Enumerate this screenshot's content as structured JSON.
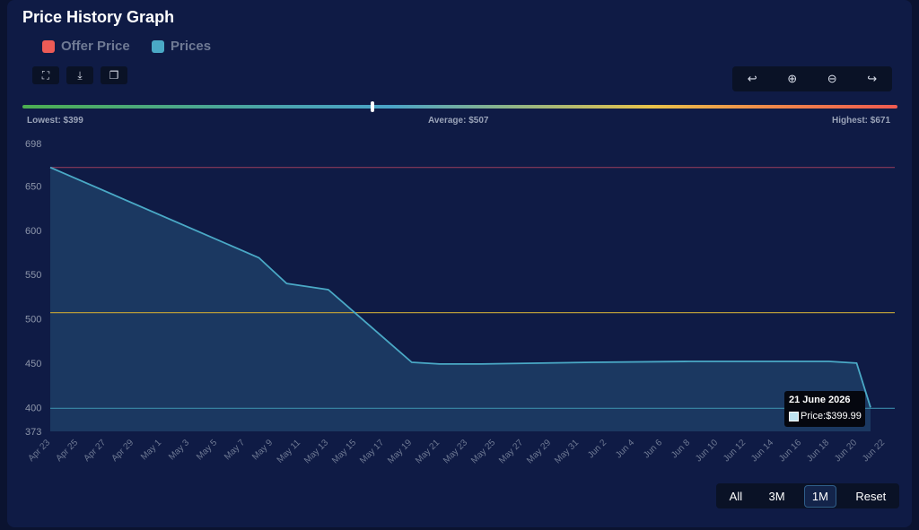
{
  "header": {
    "title": "Price History Graph"
  },
  "legend": [
    {
      "label": "Offer Price",
      "color": "#ec5b56"
    },
    {
      "label": "Prices",
      "color": "#4aa9c6"
    }
  ],
  "toolbar": {
    "left": [
      {
        "icon": "fullscreen-icon",
        "glyph": "⛶"
      },
      {
        "icon": "download-icon",
        "glyph": "⤓"
      },
      {
        "icon": "copy-icon",
        "glyph": "❐"
      }
    ],
    "zoom": [
      {
        "icon": "pan-left-icon",
        "glyph": "↩"
      },
      {
        "icon": "zoom-in-icon",
        "glyph": "⊕"
      },
      {
        "icon": "zoom-out-icon",
        "glyph": "⊖"
      },
      {
        "icon": "pan-right-icon",
        "glyph": "↪"
      }
    ]
  },
  "stats": {
    "lowest": "Lowest: $399",
    "average": "Average: $507",
    "highest": "Highest: $671"
  },
  "range_buttons": [
    {
      "label": "All",
      "active": false
    },
    {
      "label": "3M",
      "active": false
    },
    {
      "label": "1M",
      "active": true
    },
    {
      "label": "Reset",
      "active": false
    }
  ],
  "tooltip": {
    "date": "21 June 2026",
    "value": "Price:$399.99"
  },
  "chart_data": {
    "type": "area",
    "ylim": [
      373,
      698
    ],
    "y_ticks": [
      698,
      650,
      600,
      550,
      500,
      450,
      400,
      373
    ],
    "x_ticks": [
      "Apr 23",
      "Apr 25",
      "Apr 27",
      "Apr 29",
      "May 1",
      "May 3",
      "May 5",
      "May 7",
      "May 9",
      "May 11",
      "May 13",
      "May 15",
      "May 17",
      "May 19",
      "May 21",
      "May 23",
      "May 25",
      "May 27",
      "May 29",
      "May 31",
      "Jun 2",
      "Jun 4",
      "Jun 6",
      "Jun 8",
      "Jun 10",
      "Jun 12",
      "Jun 14",
      "Jun 16",
      "Jun 18",
      "Jun 20",
      "Jun 22"
    ],
    "series": [
      {
        "name": "Prices",
        "color": "#4aa9c6",
        "points": [
          [
            "Apr 23",
            671
          ],
          [
            "May 8",
            569
          ],
          [
            "May 10",
            540
          ],
          [
            "May 13",
            533
          ],
          [
            "May 19",
            451
          ],
          [
            "May 21",
            449
          ],
          [
            "May 24",
            449
          ],
          [
            "Jun 1",
            451
          ],
          [
            "Jun 8",
            452
          ],
          [
            "Jun 18",
            452
          ],
          [
            "Jun 20",
            450
          ],
          [
            "Jun 21",
            400
          ]
        ]
      }
    ],
    "reference_lines": [
      {
        "value": 671,
        "color": "#8a3a5a"
      },
      {
        "value": 507,
        "color": "#b59a3a"
      },
      {
        "value": 399,
        "color": "#3a8aa8"
      }
    ]
  }
}
